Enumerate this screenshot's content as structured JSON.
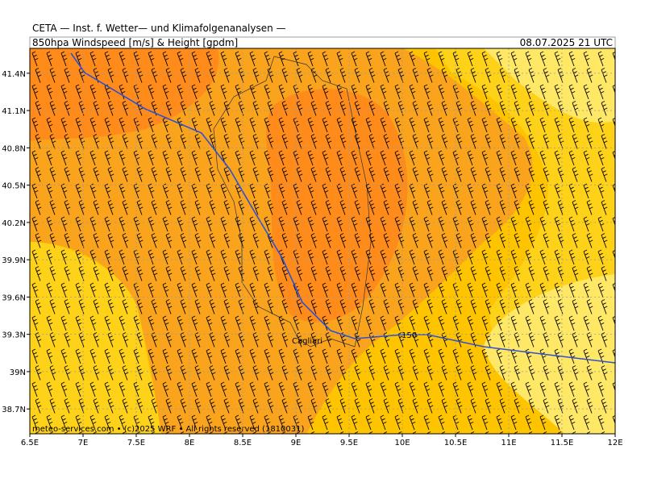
{
  "header": {
    "title": "CETA — Inst. f. Wetter— und Klimafolgenanalysen —",
    "subtitle": "850hpa Windspeed [m/s] & Height [gpdm]",
    "date": "08.07.2025 21 UTC"
  },
  "map": {
    "xlim": [
      6.5,
      12
    ],
    "ylim": [
      38.5,
      41.6
    ],
    "xticks": [
      {
        "value": 6.5,
        "label": "6.5E"
      },
      {
        "value": 7,
        "label": "7E"
      },
      {
        "value": 7.5,
        "label": "7.5E"
      },
      {
        "value": 8,
        "label": "8E"
      },
      {
        "value": 8.5,
        "label": "8.5E"
      },
      {
        "value": 9,
        "label": "9E"
      },
      {
        "value": 9.5,
        "label": "9.5E"
      },
      {
        "value": 10,
        "label": "10E"
      },
      {
        "value": 10.5,
        "label": "10.5E"
      },
      {
        "value": 11,
        "label": "11E"
      },
      {
        "value": 11.5,
        "label": "11.5E"
      },
      {
        "value": 12,
        "label": "12E"
      }
    ],
    "yticks": [
      {
        "value": 38.7,
        "label": "38.7N"
      },
      {
        "value": 39,
        "label": "39N"
      },
      {
        "value": 39.3,
        "label": "39.3N"
      },
      {
        "value": 39.6,
        "label": "39.6N"
      },
      {
        "value": 39.9,
        "label": "39.9N"
      },
      {
        "value": 40.2,
        "label": "40.2N"
      },
      {
        "value": 40.5,
        "label": "40.5N"
      },
      {
        "value": 40.8,
        "label": "40.8N"
      },
      {
        "value": 41.1,
        "label": "41.1N"
      },
      {
        "value": 41.4,
        "label": "41.4N"
      }
    ],
    "contour_label": "150",
    "city": "Cagliari",
    "credit": "meteo-services.com • (c)2025 WRF • All rights reserved (1810031)"
  }
}
